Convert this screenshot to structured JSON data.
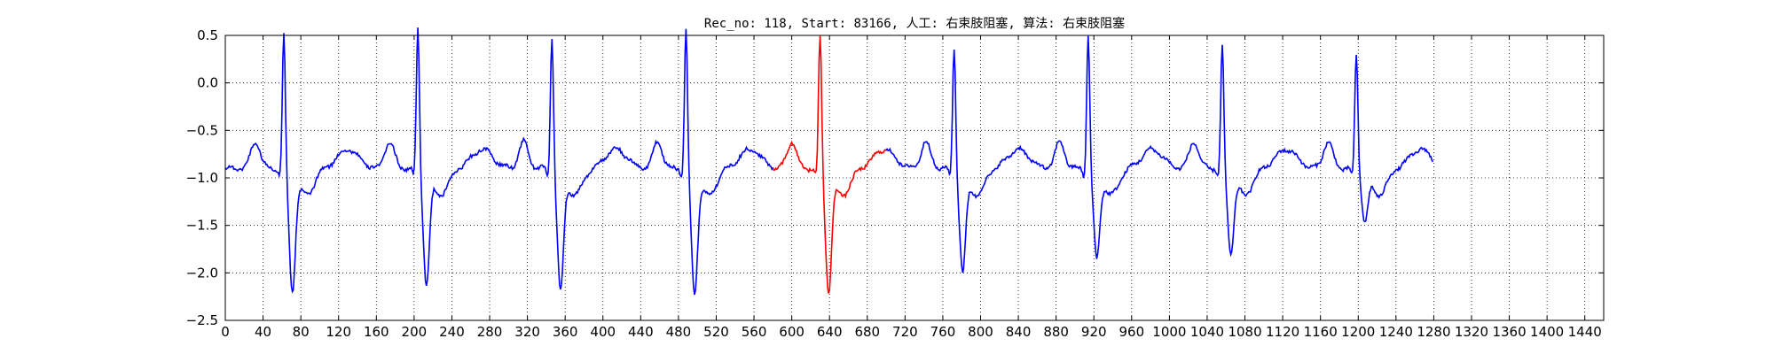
{
  "chart_data": {
    "type": "line",
    "title": "Rec_no: 118, Start: 83166, 人工: 右束肢阻塞, 算法: 右束肢阻塞",
    "xlabel": "",
    "ylabel": "",
    "xlim": [
      0,
      1460
    ],
    "ylim": [
      -2.5,
      0.5
    ],
    "grid": true,
    "x_ticks": [
      0,
      40,
      80,
      120,
      160,
      200,
      240,
      280,
      320,
      360,
      400,
      440,
      480,
      520,
      560,
      600,
      640,
      680,
      720,
      760,
      800,
      840,
      880,
      920,
      960,
      1000,
      1040,
      1080,
      1120,
      1160,
      1200,
      1240,
      1280,
      1320,
      1360,
      1400,
      1440
    ],
    "x_tick_labels": [
      "0",
      "40",
      "80",
      "120",
      "160",
      "200",
      "240",
      "280",
      "320",
      "360",
      "400",
      "440",
      "480",
      "520",
      "560",
      "600",
      "640",
      "680",
      "720",
      "760",
      "800",
      "840",
      "880",
      "920",
      "960",
      "1000",
      "1040",
      "1080",
      "1120",
      "1160",
      "1200",
      "1240",
      "1280",
      "1320",
      "1360",
      "1400",
      "1440"
    ],
    "y_ticks": [
      -2.5,
      -2.0,
      -1.5,
      -1.0,
      -0.5,
      0.0,
      0.5
    ],
    "y_tick_labels": [
      "−2.5",
      "−2.0",
      "−1.5",
      "−1.0",
      "−0.5",
      "0.0",
      "0.5"
    ],
    "n_samples": 1280,
    "beats": [
      {
        "r": 62,
        "amp": 0.42,
        "s_depth": -2.15
      },
      {
        "r": 204,
        "amp": 0.5,
        "s_depth": -2.08
      },
      {
        "r": 346,
        "amp": 0.42,
        "s_depth": -2.15
      },
      {
        "r": 488,
        "amp": 0.5,
        "s_depth": -2.18
      },
      {
        "r": 630,
        "amp": 0.42,
        "s_depth": -2.15
      },
      {
        "r": 772,
        "amp": 0.3,
        "s_depth": -1.95
      },
      {
        "r": 914,
        "amp": 0.42,
        "s_depth": -1.8
      },
      {
        "r": 1056,
        "amp": 0.3,
        "s_depth": -1.75
      },
      {
        "r": 1198,
        "amp": 0.22,
        "s_depth": -1.42
      }
    ],
    "baseline": -0.9,
    "highlight": {
      "x_start": 580,
      "x_end": 700
    },
    "series": [
      {
        "color": "#0000ff"
      },
      {
        "color": "#ff0000"
      }
    ]
  }
}
